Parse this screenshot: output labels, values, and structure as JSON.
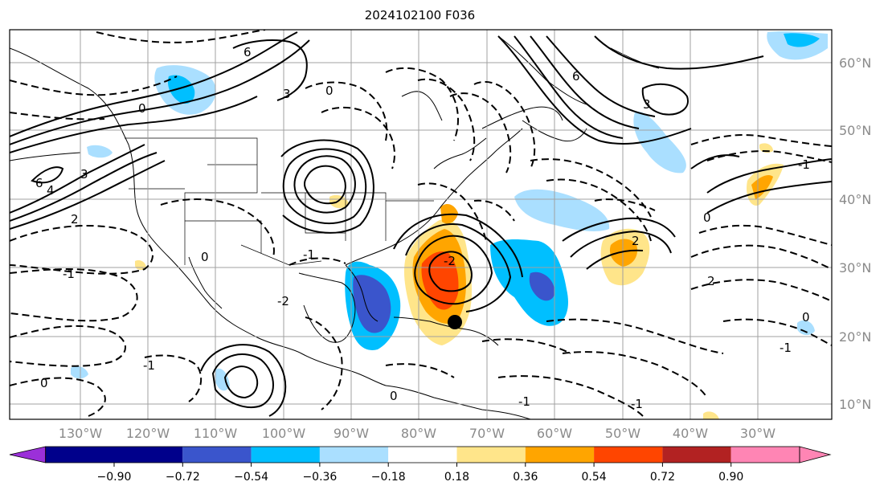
{
  "title": "2024102100 F036",
  "lat_labels": [
    "60°N",
    "50°N",
    "40°N",
    "30°N",
    "20°N",
    "10°N"
  ],
  "lon_labels": [
    "130°W",
    "120°W",
    "110°W",
    "100°W",
    "90°W",
    "80°W",
    "70°W",
    "60°W",
    "50°W",
    "40°W",
    "30°W"
  ],
  "colorbar": {
    "ticks": [
      "−0.90",
      "−0.72",
      "−0.54",
      "−0.36",
      "−0.18",
      "0.18",
      "0.36",
      "0.54",
      "0.72",
      "0.90"
    ],
    "colors": [
      "#9b30d9",
      "#00008b",
      "#3a55cc",
      "#00bfff",
      "#aadfff",
      "#ffffff",
      "#ffe58a",
      "#ffa500",
      "#ff4500",
      "#b22222",
      "#ff85b4"
    ]
  },
  "contour_labels": [
    "6",
    "3",
    "0",
    "-1",
    "-2",
    "2",
    "4",
    "0",
    "6",
    "3",
    "-1",
    "0",
    "-2",
    "-1",
    "0",
    "-1",
    "0",
    "6",
    "3",
    "-1",
    "2",
    "0",
    "-1",
    "2",
    "0",
    "-1"
  ]
}
